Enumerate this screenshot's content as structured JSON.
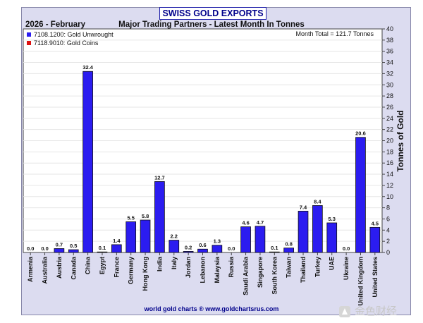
{
  "chart_data": {
    "type": "bar",
    "title": "SWISS GOLD EXPORTS",
    "period": "2026 - February",
    "subtitle": "Major Trading Partners - Latest Month In Tonnes",
    "month_total": "Month Total = 121.7 Tonnes",
    "ylabel": "Tonnes of Gold",
    "xlabel": "",
    "ylim": [
      0,
      40
    ],
    "yticks": [
      0,
      2,
      4,
      6,
      8,
      10,
      12,
      14,
      16,
      18,
      20,
      22,
      24,
      26,
      28,
      30,
      32,
      34,
      36,
      38,
      40
    ],
    "grid": true,
    "legend_position": "top-left",
    "categories": [
      "Armenia",
      "Australia",
      "Austria",
      "Canada",
      "China",
      "Egypt",
      "France",
      "Germany",
      "Hong Kong",
      "India",
      "Italy",
      "Jordan",
      "Lebanon",
      "Malaysia",
      "Russia",
      "Saudi Arabia",
      "Singapore",
      "South Korea",
      "Taiwan",
      "Thailand",
      "Turkey",
      "UAE",
      "Ukraine",
      "United Kingdom",
      "United States"
    ],
    "series": [
      {
        "name": "7108.1200: Gold Unwrought",
        "color": "#2b1cf0",
        "values": [
          0.0,
          0.0,
          0.7,
          0.5,
          32.4,
          0.1,
          1.4,
          5.5,
          5.8,
          12.7,
          2.2,
          0.2,
          0.6,
          1.3,
          0.0,
          4.6,
          4.7,
          0.1,
          0.8,
          7.4,
          8.4,
          5.3,
          0.0,
          20.6,
          4.5
        ],
        "labels": [
          "0.0",
          "0.0",
          "0.7",
          "0.5",
          "32.4",
          "0.1",
          "1.4",
          "5.5",
          "5.8",
          "12.7",
          "2.2",
          "0.2",
          "0.6",
          "1.3",
          "0.0",
          "4.6",
          "4.7",
          "0.1",
          "0.8",
          "7.4",
          "8.4",
          "5.3",
          "0.0",
          "20.6",
          "4.5"
        ]
      },
      {
        "name": "7118.9010: Gold Coins",
        "color": "#dd1111",
        "values": [
          0,
          0,
          0,
          0,
          0,
          0,
          0,
          0,
          0,
          0,
          0,
          0,
          0,
          0,
          0,
          0,
          0,
          0,
          0,
          0,
          0,
          0,
          0,
          0,
          0
        ]
      }
    ],
    "source": "world gold charts ® www.goldchartsrus.com"
  },
  "watermark": {
    "text": "金色财经"
  },
  "colors": {
    "frame_bg": "#dcdcf0",
    "plot_bg": "#ffffff",
    "title_text": "#00008b",
    "bar": "#2b1cf0",
    "coins": "#dd1111",
    "grid": "#e6e6e6"
  }
}
